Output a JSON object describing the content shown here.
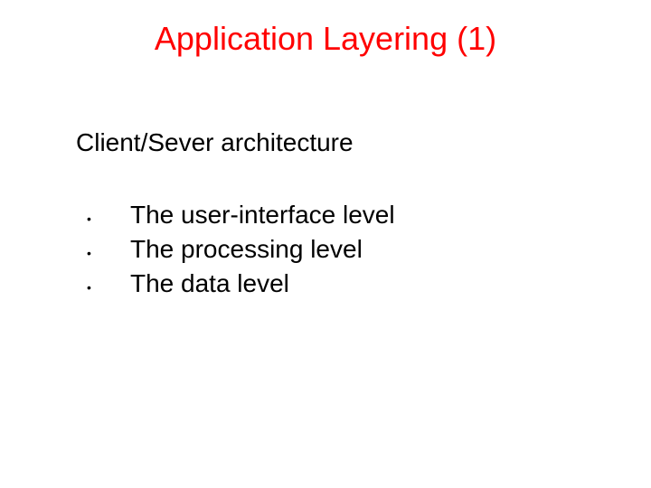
{
  "slide": {
    "title": "Application Layering (1)",
    "subtitle": "Client/Sever architecture",
    "bullets": [
      "The user-interface level",
      "The processing level",
      "The data level"
    ]
  },
  "colors": {
    "title_color": "#ff0000",
    "text_color": "#000000",
    "background": "#ffffff"
  },
  "typography": {
    "title_fontsize": 36,
    "subtitle_fontsize": 28,
    "bullet_fontsize": 28,
    "font_family": "Arial"
  }
}
